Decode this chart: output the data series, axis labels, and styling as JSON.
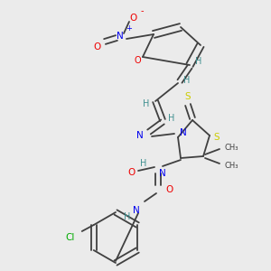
{
  "bg_color": "#ebebeb",
  "atom_colors": {
    "C": "#404040",
    "N": "#0000ee",
    "O": "#ee0000",
    "S": "#cccc00",
    "H": "#409090",
    "Cl": "#00aa00",
    "bond": "#404040"
  },
  "figsize": [
    3.0,
    3.0
  ],
  "dpi": 100
}
